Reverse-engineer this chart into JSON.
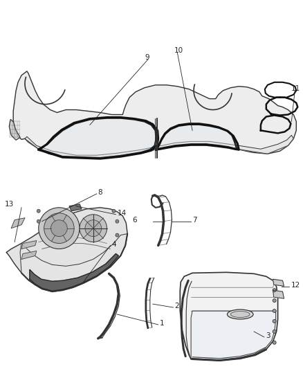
{
  "background_color": "#ffffff",
  "fig_width": 4.38,
  "fig_height": 5.33,
  "dpi": 100,
  "text_color": "#222222",
  "font_size": 7.5,
  "line_color": "#333333",
  "line_color_light": "#666666",
  "line_width": 0.8
}
